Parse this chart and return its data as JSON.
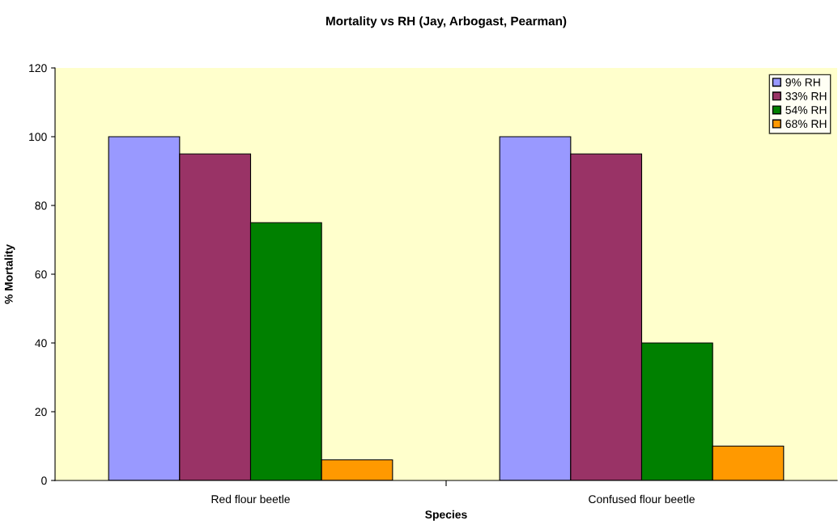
{
  "chart_data": {
    "type": "bar",
    "title": "Mortality vs RH (Jay, Arbogast, Pearman)",
    "xlabel": "Species",
    "ylabel": "% Mortality",
    "categories": [
      "Red flour beetle",
      "Confused flour beetle"
    ],
    "series": [
      {
        "name": "9% RH",
        "color": "#9999ff",
        "values": [
          100,
          100
        ]
      },
      {
        "name": "33% RH",
        "color": "#993366",
        "values": [
          95,
          95
        ]
      },
      {
        "name": "54% RH",
        "color": "#008000",
        "values": [
          75,
          40
        ]
      },
      {
        "name": "68% RH",
        "color": "#ff9900",
        "values": [
          6,
          10
        ]
      }
    ],
    "ylim": [
      0,
      120
    ],
    "yticks": [
      0,
      20,
      40,
      60,
      80,
      100,
      120
    ],
    "grid": false,
    "legend": "top right"
  }
}
